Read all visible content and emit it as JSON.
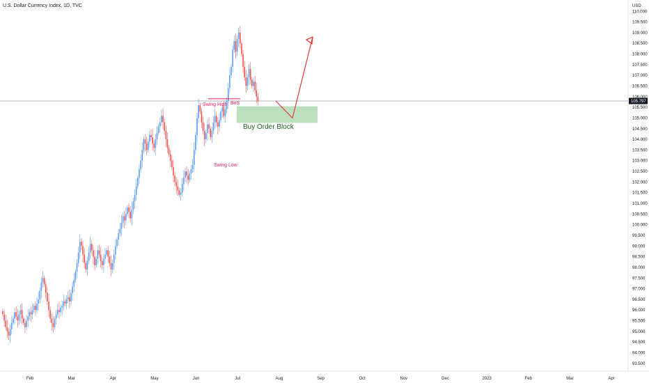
{
  "header": {
    "title": "U.S. Dollar Currency Index, 1D, TVC"
  },
  "price_axis": {
    "currency": "USD",
    "ticks": [
      "110.000",
      "109.500",
      "109.000",
      "108.500",
      "108.000",
      "107.500",
      "107.000",
      "106.500",
      "106.000",
      "105.500",
      "105.000",
      "104.500",
      "104.000",
      "103.500",
      "103.000",
      "102.500",
      "102.000",
      "101.500",
      "101.000",
      "100.500",
      "100.000",
      "99.500",
      "99.000",
      "98.500",
      "98.000",
      "97.500",
      "97.000",
      "96.500",
      "96.000",
      "95.500",
      "95.000",
      "94.500",
      "94.000",
      "93.500"
    ],
    "last_price": "105.797"
  },
  "time_axis": {
    "labels": [
      "Feb",
      "Mar",
      "Apr",
      "May",
      "Jun",
      "Jul",
      "Aug",
      "Sep",
      "Oct",
      "Nov",
      "Dec",
      "2023",
      "Feb",
      "Mar",
      "Apr"
    ]
  },
  "annotations": {
    "swing_high": "Swing High",
    "bos": "BoS",
    "swing_low": "Swing Low",
    "order_block": "Buy Order Block"
  },
  "colors": {
    "up": "#5b9cf6",
    "down": "#ef5350",
    "annotation": "#e91e63",
    "arrow": "#e53935",
    "order_block_fill": "#a5d6a7",
    "price_line": "#9598a1"
  },
  "chart_data": {
    "type": "candlestick",
    "symbol": "U.S. Dollar Currency Index",
    "interval": "1D",
    "ylim": [
      93.2,
      110.4
    ],
    "last_price": 105.797,
    "order_block": {
      "low": 104.77,
      "high": 105.55
    },
    "swing_high_level": 105.9,
    "projection": [
      [
        105.797,
        105.797
      ],
      [
        105.0,
        105.0
      ],
      [
        108.8,
        108.8
      ]
    ],
    "closes": [
      95.8,
      95.5,
      95.2,
      95.0,
      94.8,
      95.1,
      95.4,
      95.6,
      95.9,
      95.7,
      95.5,
      95.8,
      96.0,
      95.6,
      95.4,
      95.2,
      95.5,
      95.7,
      95.9,
      95.8,
      96.0,
      96.2,
      96.0,
      96.3,
      96.5,
      96.9,
      97.3,
      97.5,
      97.2,
      96.8,
      96.4,
      96.0,
      95.6,
      95.4,
      95.2,
      95.6,
      95.8,
      96.0,
      95.9,
      96.1,
      96.2,
      96.4,
      96.3,
      96.5,
      96.6,
      96.4,
      96.8,
      97.1,
      97.4,
      97.8,
      98.2,
      98.7,
      99.2,
      99.0,
      98.6,
      98.2,
      97.9,
      98.3,
      98.7,
      99.1,
      98.8,
      98.5,
      98.1,
      98.4,
      98.8,
      98.6,
      98.3,
      98.1,
      98.4,
      98.6,
      98.8,
      98.5,
      98.2,
      97.9,
      98.2,
      98.6,
      99.0,
      99.3,
      99.6,
      99.8,
      100.1,
      100.4,
      100.2,
      100.5,
      100.8,
      100.6,
      100.3,
      100.7,
      101.1,
      101.4,
      101.8,
      102.2,
      102.6,
      103.0,
      103.5,
      104.0,
      103.8,
      103.5,
      103.9,
      104.2,
      104.1,
      103.8,
      103.6,
      104.0,
      104.3,
      104.6,
      104.8,
      105.1,
      104.8,
      104.4,
      104.0,
      103.6,
      103.3,
      103.0,
      102.7,
      102.3,
      102.0,
      101.8,
      101.6,
      101.4,
      101.5,
      101.9,
      102.2,
      102.5,
      102.3,
      102.1,
      102.4,
      102.6,
      102.8,
      103.5,
      104.2,
      105.0,
      105.6,
      105.3,
      104.8,
      104.4,
      104.0,
      104.3,
      104.7,
      104.5,
      104.1,
      104.4,
      104.8,
      105.1,
      104.8,
      104.6,
      104.9,
      105.3,
      105.5,
      105.1,
      105.4,
      105.8,
      106.4,
      107.0,
      107.4,
      108.2,
      108.6,
      108.1,
      108.7,
      109.0,
      108.5,
      108.0,
      107.4,
      106.9,
      106.5,
      106.9,
      107.3,
      106.8,
      106.5,
      106.7,
      106.3,
      106.0,
      105.8
    ]
  }
}
